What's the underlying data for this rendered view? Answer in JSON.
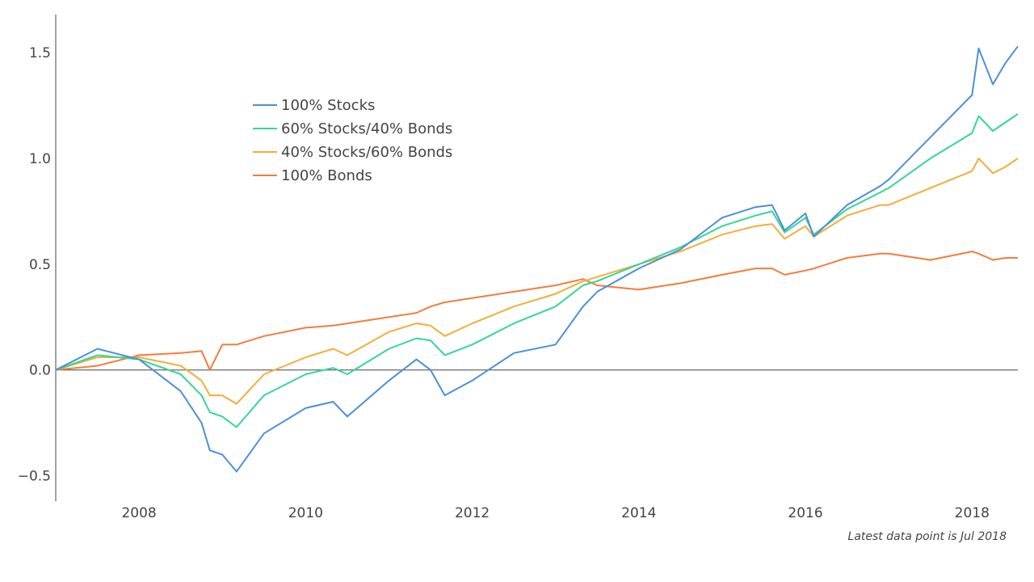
{
  "annotation": "Latest data point is Jul 2018",
  "chart_data": {
    "type": "line",
    "title": "",
    "xlabel": "",
    "ylabel": "",
    "xlim": [
      2007.0,
      2018.55
    ],
    "ylim": [
      -0.62,
      1.68
    ],
    "x_ticks": [
      2008,
      2010,
      2012,
      2014,
      2016,
      2018
    ],
    "y_ticks": [
      -0.5,
      0.0,
      0.5,
      1.0,
      1.5
    ],
    "y_tick_labels": [
      "−0.5",
      "0.0",
      "0.5",
      "1.0",
      "1.5"
    ],
    "zero_line": true,
    "grid": false,
    "legend": {
      "placement": "top-left-inside"
    },
    "x": [
      2007.0,
      2007.5,
      2008.0,
      2008.5,
      2008.75,
      2008.85,
      2009.0,
      2009.17,
      2009.5,
      2010.0,
      2010.33,
      2010.5,
      2011.0,
      2011.33,
      2011.5,
      2011.67,
      2012.0,
      2012.5,
      2013.0,
      2013.33,
      2013.5,
      2014.0,
      2014.5,
      2015.0,
      2015.4,
      2015.6,
      2015.75,
      2016.0,
      2016.1,
      2016.5,
      2016.9,
      2017.0,
      2017.5,
      2018.0,
      2018.08,
      2018.25,
      2018.4,
      2018.55
    ],
    "series": [
      {
        "name": "100% Stocks",
        "color": "#4a90d9",
        "values": [
          0.0,
          0.1,
          0.05,
          -0.1,
          -0.25,
          -0.38,
          -0.4,
          -0.48,
          -0.3,
          -0.18,
          -0.15,
          -0.22,
          -0.05,
          0.05,
          0.0,
          -0.12,
          -0.05,
          0.08,
          0.12,
          0.3,
          0.37,
          0.48,
          0.57,
          0.72,
          0.77,
          0.78,
          0.66,
          0.74,
          0.63,
          0.78,
          0.87,
          0.9,
          1.1,
          1.3,
          1.52,
          1.35,
          1.45,
          1.53
        ]
      },
      {
        "name": "60% Stocks/40% Bonds",
        "color": "#33d699",
        "values": [
          0.0,
          0.07,
          0.05,
          -0.02,
          -0.12,
          -0.2,
          -0.22,
          -0.27,
          -0.12,
          -0.02,
          0.01,
          -0.02,
          0.1,
          0.15,
          0.14,
          0.07,
          0.12,
          0.22,
          0.3,
          0.4,
          0.42,
          0.5,
          0.58,
          0.68,
          0.73,
          0.75,
          0.65,
          0.72,
          0.64,
          0.76,
          0.84,
          0.86,
          1.0,
          1.12,
          1.2,
          1.13,
          1.17,
          1.21
        ]
      },
      {
        "name": "40% Stocks/60% Bonds",
        "color": "#f5ad38",
        "values": [
          0.0,
          0.06,
          0.06,
          0.02,
          -0.05,
          -0.12,
          -0.12,
          -0.16,
          -0.02,
          0.06,
          0.1,
          0.07,
          0.18,
          0.22,
          0.21,
          0.16,
          0.22,
          0.3,
          0.36,
          0.42,
          0.44,
          0.5,
          0.56,
          0.64,
          0.68,
          0.69,
          0.62,
          0.68,
          0.63,
          0.73,
          0.78,
          0.78,
          0.86,
          0.94,
          1.0,
          0.93,
          0.96,
          1.0
        ]
      },
      {
        "name": "100% Bonds",
        "color": "#f47c3c",
        "values": [
          0.0,
          0.02,
          0.07,
          0.08,
          0.09,
          0.0,
          0.12,
          0.12,
          0.16,
          0.2,
          0.21,
          0.22,
          0.25,
          0.27,
          0.3,
          0.32,
          0.34,
          0.37,
          0.4,
          0.43,
          0.4,
          0.38,
          0.41,
          0.45,
          0.48,
          0.48,
          0.45,
          0.47,
          0.48,
          0.53,
          0.55,
          0.55,
          0.52,
          0.56,
          0.55,
          0.52,
          0.53,
          0.53
        ]
      }
    ]
  }
}
